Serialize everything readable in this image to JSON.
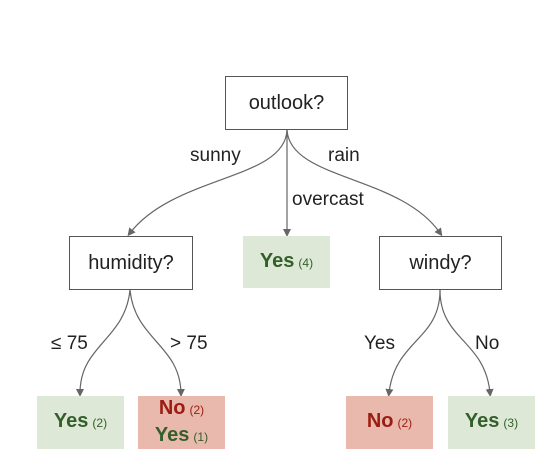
{
  "nodes": {
    "outlook": {
      "label": "outlook?"
    },
    "humidity": {
      "label": "humidity?"
    },
    "windy": {
      "label": "windy?"
    },
    "overcast_leaf": {
      "label": "Yes",
      "count": "(4)"
    },
    "humidity_low_leaf": {
      "label": "Yes",
      "count": "(2)"
    },
    "humidity_high_leaf": {
      "line1_label": "No",
      "line1_count": "(2)",
      "line2_label": "Yes",
      "line2_count": "(1)"
    },
    "windy_yes_leaf": {
      "label": "No",
      "count": "(2)"
    },
    "windy_no_leaf": {
      "label": "Yes",
      "count": "(3)"
    }
  },
  "edges": {
    "sunny": "sunny",
    "overcast": "overcast",
    "rain": "rain",
    "humidity_low": "≤ 75",
    "humidity_high": "> 75",
    "windy_yes": "Yes",
    "windy_no": "No"
  },
  "colors": {
    "yes_fill": "#dde9d6",
    "yes_text": "#335f2a",
    "no_fill": "#e9b9ad",
    "no_text": "#9b1c10",
    "edge": "#666666"
  }
}
